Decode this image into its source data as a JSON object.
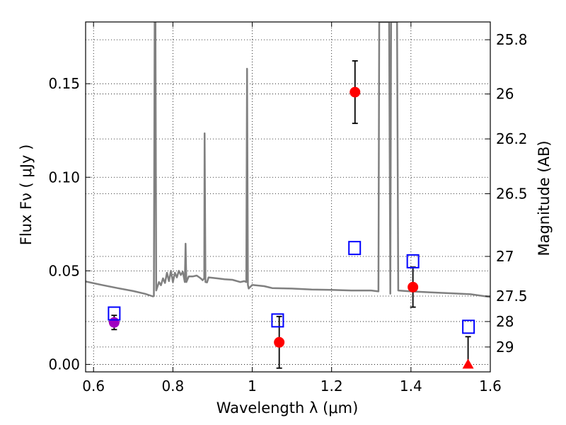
{
  "chart_data": {
    "type": "scatter",
    "xlabel": "Wavelength  λ (μm)",
    "ylabel": "Flux  Fν  ( μJy )",
    "y2label": "Magnitude (AB)",
    "xlim": [
      0.58,
      1.6
    ],
    "ylim": [
      -0.004,
      0.183
    ],
    "grid": true,
    "xticks": [
      {
        "value": 0.6,
        "label": "0.6"
      },
      {
        "value": 0.8,
        "label": "0.8"
      },
      {
        "value": 1.0,
        "label": "1"
      },
      {
        "value": 1.2,
        "label": "1.2"
      },
      {
        "value": 1.4,
        "label": "1.4"
      },
      {
        "value": 1.6,
        "label": "1.6"
      }
    ],
    "yticks": [
      {
        "value": 0.0,
        "label": "0.00"
      },
      {
        "value": 0.05,
        "label": "0.05"
      },
      {
        "value": 0.1,
        "label": "0.10"
      },
      {
        "value": 0.15,
        "label": "0.15"
      }
    ],
    "y2ticks": [
      {
        "label": "25.8",
        "flux": 0.1735
      },
      {
        "label": "26",
        "flux": 0.1445
      },
      {
        "label": "26.2",
        "flux": 0.1205
      },
      {
        "label": "26.5",
        "flux": 0.0912
      },
      {
        "label": "27",
        "flux": 0.0577
      },
      {
        "label": "27.5",
        "flux": 0.0365
      },
      {
        "label": "28",
        "flux": 0.0229
      },
      {
        "label": "29",
        "flux": 0.0093
      }
    ],
    "series": [
      {
        "kind": "line",
        "color": "#808080",
        "points": [
          [
            0.58,
            0.0443
          ],
          [
            0.62,
            0.0425
          ],
          [
            0.66,
            0.0408
          ],
          [
            0.7,
            0.0392
          ],
          [
            0.73,
            0.0377
          ],
          [
            0.75,
            0.0363
          ],
          [
            0.752,
            0.0365
          ],
          [
            0.754,
            0.183
          ],
          [
            0.756,
            0.183
          ],
          [
            0.758,
            0.0395
          ],
          [
            0.765,
            0.044
          ],
          [
            0.77,
            0.0423
          ],
          [
            0.775,
            0.046
          ],
          [
            0.78,
            0.0435
          ],
          [
            0.785,
            0.049
          ],
          [
            0.79,
            0.0445
          ],
          [
            0.795,
            0.05
          ],
          [
            0.8,
            0.044
          ],
          [
            0.805,
            0.049
          ],
          [
            0.81,
            0.0465
          ],
          [
            0.815,
            0.05
          ],
          [
            0.82,
            0.0478
          ],
          [
            0.825,
            0.0495
          ],
          [
            0.83,
            0.044
          ],
          [
            0.832,
            0.0645
          ],
          [
            0.834,
            0.044
          ],
          [
            0.84,
            0.047
          ],
          [
            0.85,
            0.047
          ],
          [
            0.86,
            0.0475
          ],
          [
            0.87,
            0.046
          ],
          [
            0.875,
            0.045
          ],
          [
            0.879,
            0.046
          ],
          [
            0.88,
            0.1235
          ],
          [
            0.882,
            0.044
          ],
          [
            0.886,
            0.0438
          ],
          [
            0.89,
            0.0465
          ],
          [
            0.91,
            0.046
          ],
          [
            0.93,
            0.0455
          ],
          [
            0.95,
            0.0452
          ],
          [
            0.97,
            0.044
          ],
          [
            0.98,
            0.0445
          ],
          [
            0.985,
            0.044
          ],
          [
            0.987,
            0.158
          ],
          [
            0.989,
            0.0425
          ],
          [
            0.991,
            0.0405
          ],
          [
            1.0,
            0.0425
          ],
          [
            1.03,
            0.0418
          ],
          [
            1.05,
            0.0408
          ],
          [
            1.1,
            0.0405
          ],
          [
            1.15,
            0.04
          ],
          [
            1.2,
            0.0398
          ],
          [
            1.25,
            0.0395
          ],
          [
            1.3,
            0.0395
          ],
          [
            1.318,
            0.039
          ],
          [
            1.32,
            0.183
          ],
          [
            1.345,
            0.183
          ],
          [
            1.348,
            0.0378
          ],
          [
            1.35,
            0.183
          ],
          [
            1.365,
            0.183
          ],
          [
            1.368,
            0.0395
          ],
          [
            1.4,
            0.039
          ],
          [
            1.45,
            0.0385
          ],
          [
            1.5,
            0.038
          ],
          [
            1.55,
            0.0375
          ],
          [
            1.6,
            0.036
          ]
        ]
      },
      {
        "kind": "markers",
        "marker": "circle",
        "color": "#ff0000",
        "points": [
          {
            "x": 1.068,
            "y": 0.0118,
            "err": 0.0138
          },
          {
            "x": 1.259,
            "y": 0.1455,
            "err": 0.0167
          },
          {
            "x": 1.405,
            "y": 0.0413,
            "err": 0.0107
          }
        ]
      },
      {
        "kind": "markers",
        "marker": "circle",
        "color": "#a000c0",
        "points": [
          {
            "x": 0.652,
            "y": 0.0224,
            "err": 0.0038
          }
        ]
      },
      {
        "kind": "markers",
        "marker": "triangle",
        "color": "#ff0000",
        "points": [
          {
            "x": 1.544,
            "y": 0.0,
            "err_upper": 0.0148
          }
        ]
      },
      {
        "kind": "markers",
        "marker": "square-open",
        "color": "#0000ff",
        "points": [
          {
            "x": 0.652,
            "y": 0.0272
          },
          {
            "x": 1.064,
            "y": 0.0235
          },
          {
            "x": 1.258,
            "y": 0.0622
          },
          {
            "x": 1.405,
            "y": 0.0551
          },
          {
            "x": 1.545,
            "y": 0.0201
          }
        ]
      }
    ]
  }
}
